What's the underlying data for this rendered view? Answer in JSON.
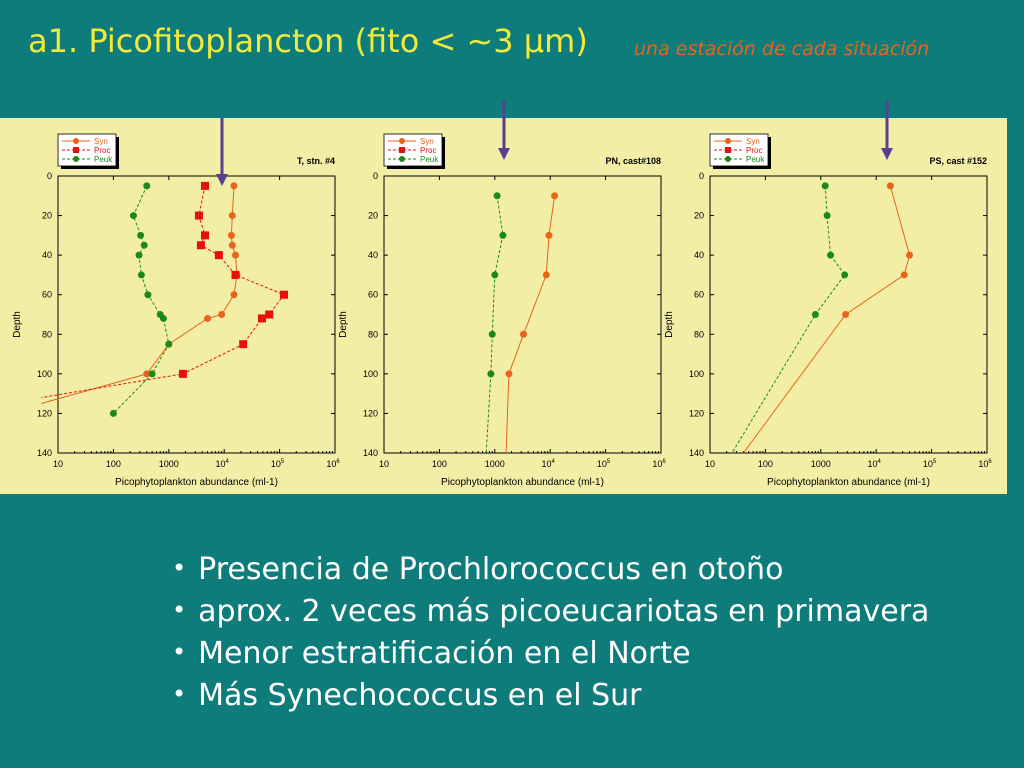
{
  "slide": {
    "title": "a1. Picofitoplancton (fito < ~3 µm)",
    "subtitle": "una estación de cada situación",
    "bullets": [
      "Presencia de Prochlorococcus en otoño",
      "aprox. 2 veces más picoeucariotas en primavera",
      "Menor estratificación en el Norte",
      "Más Synechococcus en el Sur"
    ],
    "colors": {
      "background": "#0e7c7b",
      "title": "#f2ea3a",
      "subtitle": "#e8641a",
      "panel": "#f3eea6",
      "arrow": "#5a3f8e"
    }
  },
  "chart_data": [
    {
      "type": "line",
      "title": "T, stn. #4",
      "xlabel": "Picophytoplankton abundance (ml-1)",
      "ylabel": "Depth",
      "xscale": "log",
      "xlim": [
        10,
        1000000
      ],
      "ylim": [
        0,
        140
      ],
      "x_ticks": [
        "10",
        "100",
        "1000",
        "10^4",
        "10^5",
        "10^6"
      ],
      "y_ticks": [
        "0",
        "20",
        "40",
        "60",
        "80",
        "100",
        "120",
        "140"
      ],
      "legend": "top-left",
      "series": [
        {
          "name": "Syn",
          "color": "#e8641a",
          "marker": "circle",
          "dash": "solid",
          "points": [
            [
              15000,
              5
            ],
            [
              14000,
              20
            ],
            [
              13500,
              30
            ],
            [
              14000,
              35
            ],
            [
              16000,
              40
            ],
            [
              17000,
              50
            ],
            [
              15000,
              60
            ],
            [
              9000,
              70
            ],
            [
              5000,
              72
            ],
            [
              1000,
              85
            ],
            [
              400,
              100
            ],
            [
              5,
              115
            ]
          ]
        },
        {
          "name": "Proc",
          "color": "#e8100a",
          "marker": "square",
          "dash": "dashed",
          "points": [
            [
              4500,
              5
            ],
            [
              3500,
              20
            ],
            [
              4500,
              30
            ],
            [
              3800,
              35
            ],
            [
              8000,
              40
            ],
            [
              16000,
              50
            ],
            [
              120000,
              60
            ],
            [
              65000,
              70
            ],
            [
              48000,
              72
            ],
            [
              22000,
              85
            ],
            [
              1800,
              100
            ],
            [
              5,
              112
            ]
          ]
        },
        {
          "name": "Peuk",
          "color": "#1b8a1b",
          "marker": "circle",
          "dash": "dashed",
          "points": [
            [
              400,
              5
            ],
            [
              230,
              20
            ],
            [
              310,
              30
            ],
            [
              360,
              35
            ],
            [
              290,
              40
            ],
            [
              320,
              50
            ],
            [
              420,
              60
            ],
            [
              700,
              70
            ],
            [
              800,
              72
            ],
            [
              1000,
              85
            ],
            [
              500,
              100
            ],
            [
              100,
              120
            ]
          ]
        }
      ]
    },
    {
      "type": "line",
      "title": "PN, cast#108",
      "xlabel": "Picophytoplankton abundance (ml-1)",
      "ylabel": "Depth",
      "xscale": "log",
      "xlim": [
        10,
        1000000
      ],
      "ylim": [
        0,
        140
      ],
      "x_ticks": [
        "10",
        "100",
        "1000",
        "10^4",
        "10^5",
        "10^6"
      ],
      "y_ticks": [
        "0",
        "20",
        "40",
        "60",
        "80",
        "100",
        "120",
        "140"
      ],
      "legend": "top-left",
      "series": [
        {
          "name": "Syn",
          "color": "#e8641a",
          "marker": "circle",
          "dash": "solid",
          "points": [
            [
              12000,
              10
            ],
            [
              9500,
              30
            ],
            [
              8500,
              50
            ],
            [
              3300,
              80
            ],
            [
              1800,
              100
            ],
            [
              1600,
              140
            ]
          ]
        },
        {
          "name": "Proc",
          "color": "#e8100a",
          "marker": "square",
          "dash": "dashed",
          "points": []
        },
        {
          "name": "Peuk",
          "color": "#1b8a1b",
          "marker": "circle",
          "dash": "dashed",
          "points": [
            [
              1100,
              10
            ],
            [
              1400,
              30
            ],
            [
              1000,
              50
            ],
            [
              900,
              80
            ],
            [
              850,
              100
            ],
            [
              700,
              140
            ]
          ]
        }
      ]
    },
    {
      "type": "line",
      "title": "PS, cast #152",
      "xlabel": "Picophytoplankton abundance (ml-1)",
      "ylabel": "Depth",
      "xscale": "log",
      "xlim": [
        10,
        1000000
      ],
      "ylim": [
        0,
        140
      ],
      "x_ticks": [
        "10",
        "100",
        "1000",
        "10^4",
        "10^5",
        "10^6"
      ],
      "y_ticks": [
        "0",
        "20",
        "40",
        "60",
        "80",
        "100",
        "120",
        "140"
      ],
      "legend": "top-left",
      "series": [
        {
          "name": "Syn",
          "color": "#e8641a",
          "marker": "circle",
          "dash": "solid",
          "points": [
            [
              18000,
              5
            ],
            [
              40000,
              40
            ],
            [
              32000,
              50
            ],
            [
              2800,
              70
            ],
            [
              40,
              140
            ]
          ]
        },
        {
          "name": "Proc",
          "color": "#e8100a",
          "marker": "square",
          "dash": "dashed",
          "points": []
        },
        {
          "name": "Peuk",
          "color": "#1b8a1b",
          "marker": "circle",
          "dash": "dashed",
          "points": [
            [
              1200,
              5
            ],
            [
              1300,
              20
            ],
            [
              1500,
              40
            ],
            [
              2700,
              50
            ],
            [
              800,
              70
            ],
            [
              25,
              140
            ]
          ]
        }
      ]
    }
  ]
}
